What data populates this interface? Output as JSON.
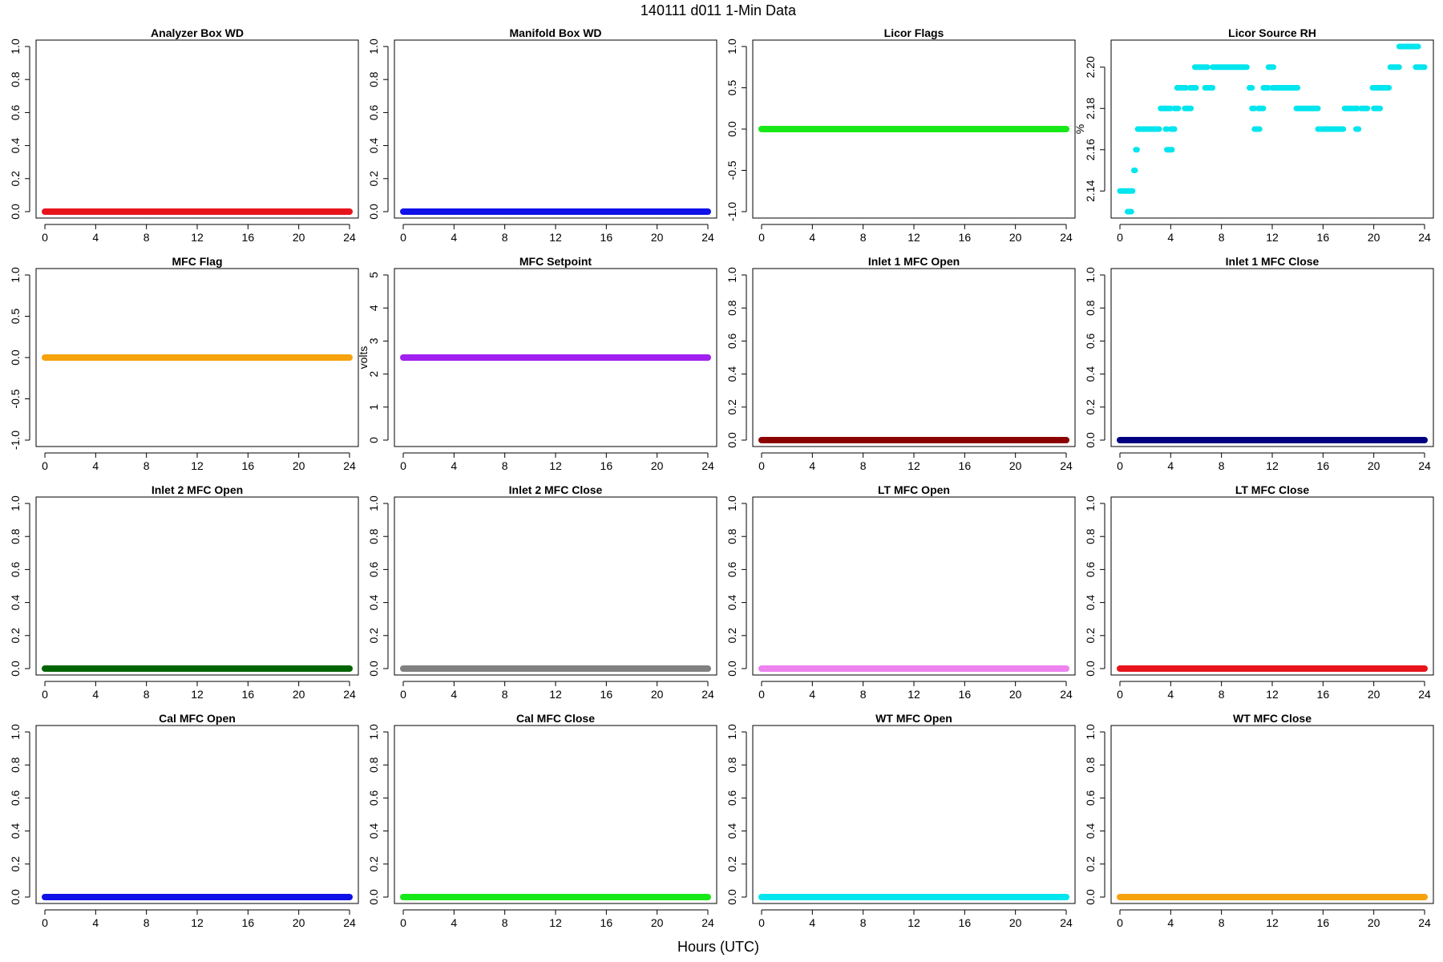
{
  "figure": {
    "title": "140111   d011   1-Min Data",
    "xlabel": "Hours (UTC)"
  },
  "chart_data": [
    {
      "type": "scatter",
      "title": "Analyzer Box WD",
      "ylabel": "",
      "color": "#e8141c",
      "xlim": [
        0,
        24
      ],
      "ylim": [
        0,
        1
      ],
      "xticks": [
        0,
        4,
        8,
        12,
        16,
        20,
        24
      ],
      "yticks": [
        "0.0",
        "0.2",
        "0.4",
        "0.6",
        "0.8",
        "1.0"
      ],
      "constant": 0
    },
    {
      "type": "scatter",
      "title": "Manifold Box WD",
      "ylabel": "",
      "color": "#1010e8",
      "xlim": [
        0,
        24
      ],
      "ylim": [
        0,
        1
      ],
      "xticks": [
        0,
        4,
        8,
        12,
        16,
        20,
        24
      ],
      "yticks": [
        "0.0",
        "0.2",
        "0.4",
        "0.6",
        "0.8",
        "1.0"
      ],
      "constant": 0
    },
    {
      "type": "scatter",
      "title": "Licor Flags",
      "ylabel": "",
      "color": "#17e817",
      "xlim": [
        0,
        24
      ],
      "ylim": [
        -1,
        1
      ],
      "xticks": [
        0,
        4,
        8,
        12,
        16,
        20,
        24
      ],
      "yticks": [
        "-1.0",
        "-0.5",
        "0.0",
        "0.5",
        "1.0"
      ],
      "constant": 0
    },
    {
      "type": "scatter",
      "title": "Licor Source RH",
      "ylabel": "%",
      "color": "#00e5ee",
      "xlim": [
        0,
        24
      ],
      "ylim": [
        2.13,
        2.21
      ],
      "xticks": [
        0,
        4,
        8,
        12,
        16,
        20,
        24
      ],
      "yticks": [
        "2.14",
        "2.16",
        "2.18",
        "2.20"
      ],
      "segments": [
        [
          0.0,
          1.0,
          2.14
        ],
        [
          0.6,
          0.9,
          2.13
        ],
        [
          1.1,
          1.2,
          2.15
        ],
        [
          1.25,
          1.35,
          2.16
        ],
        [
          1.4,
          3.1,
          2.17
        ],
        [
          3.2,
          4.0,
          2.18
        ],
        [
          3.6,
          3.7,
          2.17
        ],
        [
          3.7,
          4.1,
          2.16
        ],
        [
          4.0,
          4.3,
          2.17
        ],
        [
          4.3,
          4.6,
          2.18
        ],
        [
          4.5,
          5.2,
          2.19
        ],
        [
          5.1,
          5.6,
          2.18
        ],
        [
          5.5,
          6.0,
          2.19
        ],
        [
          5.9,
          6.9,
          2.2
        ],
        [
          6.7,
          7.3,
          2.19
        ],
        [
          7.3,
          10.0,
          2.2
        ],
        [
          10.2,
          10.4,
          2.19
        ],
        [
          10.4,
          10.6,
          2.18
        ],
        [
          10.6,
          11.0,
          2.17
        ],
        [
          10.9,
          11.3,
          2.18
        ],
        [
          11.3,
          11.7,
          2.19
        ],
        [
          11.7,
          12.1,
          2.2
        ],
        [
          12.0,
          14.0,
          2.19
        ],
        [
          13.9,
          15.6,
          2.18
        ],
        [
          15.6,
          17.6,
          2.17
        ],
        [
          17.7,
          18.7,
          2.18
        ],
        [
          18.6,
          18.8,
          2.17
        ],
        [
          19.0,
          19.5,
          2.18
        ],
        [
          20.0,
          20.5,
          2.18
        ],
        [
          19.9,
          21.2,
          2.19
        ],
        [
          21.3,
          22.0,
          2.2
        ],
        [
          22.0,
          23.5,
          2.21
        ],
        [
          23.3,
          24.0,
          2.2
        ]
      ]
    },
    {
      "type": "scatter",
      "title": "MFC Flag",
      "ylabel": "",
      "color": "#f5a20c",
      "xlim": [
        0,
        24
      ],
      "ylim": [
        -1,
        1
      ],
      "xticks": [
        0,
        4,
        8,
        12,
        16,
        20,
        24
      ],
      "yticks": [
        "-1.0",
        "-0.5",
        "0.0",
        "0.5",
        "1.0"
      ],
      "constant": 0
    },
    {
      "type": "scatter",
      "title": "MFC Setpoint",
      "ylabel": "volts",
      "color": "#a020f0",
      "xlim": [
        0,
        24
      ],
      "ylim": [
        0,
        5
      ],
      "xticks": [
        0,
        4,
        8,
        12,
        16,
        20,
        24
      ],
      "yticks": [
        "0",
        "1",
        "2",
        "3",
        "4",
        "5"
      ],
      "constant": 2.5
    },
    {
      "type": "scatter",
      "title": "Inlet 1 MFC Open",
      "ylabel": "",
      "color": "#8b0000",
      "xlim": [
        0,
        24
      ],
      "ylim": [
        0,
        1
      ],
      "xticks": [
        0,
        4,
        8,
        12,
        16,
        20,
        24
      ],
      "yticks": [
        "0.0",
        "0.2",
        "0.4",
        "0.6",
        "0.8",
        "1.0"
      ],
      "constant": 0
    },
    {
      "type": "scatter",
      "title": "Inlet 1 MFC Close",
      "ylabel": "",
      "color": "#000080",
      "xlim": [
        0,
        24
      ],
      "ylim": [
        0,
        1
      ],
      "xticks": [
        0,
        4,
        8,
        12,
        16,
        20,
        24
      ],
      "yticks": [
        "0.0",
        "0.2",
        "0.4",
        "0.6",
        "0.8",
        "1.0"
      ],
      "constant": 0
    },
    {
      "type": "scatter",
      "title": "Inlet 2 MFC Open",
      "ylabel": "",
      "color": "#006400",
      "xlim": [
        0,
        24
      ],
      "ylim": [
        0,
        1
      ],
      "xticks": [
        0,
        4,
        8,
        12,
        16,
        20,
        24
      ],
      "yticks": [
        "0.0",
        "0.2",
        "0.4",
        "0.6",
        "0.8",
        "1.0"
      ],
      "constant": 0
    },
    {
      "type": "scatter",
      "title": "Inlet 2 MFC Close",
      "ylabel": "",
      "color": "#808080",
      "xlim": [
        0,
        24
      ],
      "ylim": [
        0,
        1
      ],
      "xticks": [
        0,
        4,
        8,
        12,
        16,
        20,
        24
      ],
      "yticks": [
        "0.0",
        "0.2",
        "0.4",
        "0.6",
        "0.8",
        "1.0"
      ],
      "constant": 0
    },
    {
      "type": "scatter",
      "title": "LT MFC Open",
      "ylabel": "",
      "color": "#ee82ee",
      "xlim": [
        0,
        24
      ],
      "ylim": [
        0,
        1
      ],
      "xticks": [
        0,
        4,
        8,
        12,
        16,
        20,
        24
      ],
      "yticks": [
        "0.0",
        "0.2",
        "0.4",
        "0.6",
        "0.8",
        "1.0"
      ],
      "constant": 0
    },
    {
      "type": "scatter",
      "title": "LT MFC Close",
      "ylabel": "",
      "color": "#e8141c",
      "xlim": [
        0,
        24
      ],
      "ylim": [
        0,
        1
      ],
      "xticks": [
        0,
        4,
        8,
        12,
        16,
        20,
        24
      ],
      "yticks": [
        "0.0",
        "0.2",
        "0.4",
        "0.6",
        "0.8",
        "1.0"
      ],
      "constant": 0
    },
    {
      "type": "scatter",
      "title": "Cal MFC Open",
      "ylabel": "",
      "color": "#1010e8",
      "xlim": [
        0,
        24
      ],
      "ylim": [
        0,
        1
      ],
      "xticks": [
        0,
        4,
        8,
        12,
        16,
        20,
        24
      ],
      "yticks": [
        "0.0",
        "0.2",
        "0.4",
        "0.6",
        "0.8",
        "1.0"
      ],
      "constant": 0
    },
    {
      "type": "scatter",
      "title": "Cal MFC Close",
      "ylabel": "",
      "color": "#17e817",
      "xlim": [
        0,
        24
      ],
      "ylim": [
        0,
        1
      ],
      "xticks": [
        0,
        4,
        8,
        12,
        16,
        20,
        24
      ],
      "yticks": [
        "0.0",
        "0.2",
        "0.4",
        "0.6",
        "0.8",
        "1.0"
      ],
      "constant": 0
    },
    {
      "type": "scatter",
      "title": "WT MFC Open",
      "ylabel": "",
      "color": "#00e5ee",
      "xlim": [
        0,
        24
      ],
      "ylim": [
        0,
        1
      ],
      "xticks": [
        0,
        4,
        8,
        12,
        16,
        20,
        24
      ],
      "yticks": [
        "0.0",
        "0.2",
        "0.4",
        "0.6",
        "0.8",
        "1.0"
      ],
      "constant": 0
    },
    {
      "type": "scatter",
      "title": "WT MFC Close",
      "ylabel": "",
      "color": "#f5a20c",
      "xlim": [
        0,
        24
      ],
      "ylim": [
        0,
        1
      ],
      "xticks": [
        0,
        4,
        8,
        12,
        16,
        20,
        24
      ],
      "yticks": [
        "0.0",
        "0.2",
        "0.4",
        "0.6",
        "0.8",
        "1.0"
      ],
      "constant": 0
    }
  ]
}
